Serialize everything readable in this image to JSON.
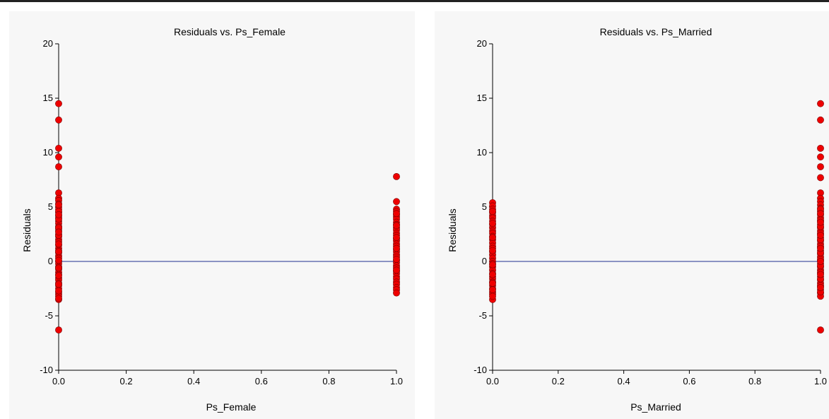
{
  "theme": {
    "point_color": "#ee0000",
    "reference_line_color": "#1f2f8f"
  },
  "chart_data": [
    {
      "type": "scatter",
      "title": "Residuals vs. Ps_Female",
      "xlabel": "Ps_Female",
      "ylabel": "Residuals",
      "xlim": [
        0.0,
        1.0
      ],
      "ylim": [
        -10,
        20
      ],
      "x_ticks": [
        "0.0",
        "0.2",
        "0.4",
        "0.6",
        "0.8",
        "1.0"
      ],
      "y_ticks": [
        "-10",
        "-5",
        "0",
        "5",
        "10",
        "15",
        "20"
      ],
      "reference_line_y": 0,
      "grid": false,
      "series": [
        {
          "x": [
            0,
            0,
            0,
            0,
            0,
            0,
            0,
            0,
            0,
            0,
            0,
            0,
            0,
            0,
            0,
            0,
            0,
            0,
            0,
            0,
            0,
            0,
            0,
            0,
            0,
            0,
            0,
            0,
            0,
            0,
            0,
            0,
            0,
            0,
            0,
            0,
            0,
            0,
            0,
            0,
            0,
            0,
            0,
            0,
            0,
            0,
            0,
            0,
            0,
            0,
            0,
            0,
            0,
            0,
            0,
            0,
            0,
            0,
            0,
            0,
            1,
            1,
            1,
            1,
            1,
            1,
            1,
            1,
            1,
            1,
            1,
            1,
            1,
            1,
            1,
            1,
            1,
            1,
            1,
            1,
            1,
            1,
            1,
            1,
            1,
            1,
            1,
            1,
            1,
            1,
            1,
            1,
            1,
            1,
            1,
            1,
            1,
            1,
            1,
            1
          ],
          "y": [
            14.5,
            13.0,
            10.4,
            9.6,
            8.7,
            6.3,
            5.8,
            5.6,
            5.3,
            5.0,
            4.8,
            4.5,
            4.2,
            4.0,
            3.7,
            3.5,
            3.2,
            3.0,
            2.8,
            2.5,
            2.3,
            2.0,
            1.8,
            1.5,
            1.2,
            1.0,
            0.8,
            0.5,
            0.3,
            0.0,
            -0.2,
            -0.5,
            -0.7,
            -1.0,
            -1.2,
            -1.5,
            -1.7,
            -2.0,
            -2.2,
            -2.5,
            -2.8,
            -3.0,
            -3.2,
            -3.5,
            -6.3,
            4.6,
            3.9,
            3.1,
            2.4,
            1.6,
            0.9,
            0.1,
            -0.6,
            -1.3,
            -2.1,
            -2.7,
            -3.4,
            5.2,
            4.3,
            2.7,
            7.8,
            5.5,
            4.8,
            4.6,
            4.3,
            4.1,
            3.9,
            3.6,
            3.4,
            3.1,
            2.9,
            2.6,
            2.4,
            2.1,
            1.9,
            1.6,
            1.4,
            1.1,
            0.9,
            0.6,
            0.4,
            0.1,
            -0.1,
            -0.4,
            -0.6,
            -0.9,
            -1.1,
            -1.4,
            -1.6,
            -1.9,
            -2.1,
            -2.4,
            -2.6,
            -2.9,
            4.4,
            3.3,
            2.2,
            1.2,
            0.2,
            -0.8
          ]
        }
      ]
    },
    {
      "type": "scatter",
      "title": "Residuals vs. Ps_Married",
      "xlabel": "Ps_Married",
      "ylabel": "Residuals",
      "xlim": [
        0.0,
        1.0
      ],
      "ylim": [
        -10,
        20
      ],
      "x_ticks": [
        "0.0",
        "0.2",
        "0.4",
        "0.6",
        "0.8",
        "1.0"
      ],
      "y_ticks": [
        "-10",
        "-5",
        "0",
        "5",
        "10",
        "15",
        "20"
      ],
      "reference_line_y": 0,
      "grid": false,
      "series": [
        {
          "x": [
            0,
            0,
            0,
            0,
            0,
            0,
            0,
            0,
            0,
            0,
            0,
            0,
            0,
            0,
            0,
            0,
            0,
            0,
            0,
            0,
            0,
            0,
            0,
            0,
            0,
            0,
            0,
            0,
            0,
            0,
            0,
            0,
            0,
            0,
            0,
            0,
            0,
            0,
            0,
            0,
            0,
            1,
            1,
            1,
            1,
            1,
            1,
            1,
            1,
            1,
            1,
            1,
            1,
            1,
            1,
            1,
            1,
            1,
            1,
            1,
            1,
            1,
            1,
            1,
            1,
            1,
            1,
            1,
            1,
            1,
            1,
            1,
            1,
            1,
            1,
            1,
            1,
            1,
            1,
            1,
            1,
            1,
            1,
            1,
            1,
            1,
            1,
            1,
            1,
            1,
            1,
            1,
            1,
            1,
            1,
            1,
            1,
            1,
            1,
            1
          ],
          "y": [
            5.4,
            5.1,
            4.8,
            4.5,
            4.2,
            4.0,
            3.7,
            3.4,
            3.1,
            2.8,
            2.6,
            2.3,
            2.0,
            1.7,
            1.4,
            1.2,
            0.9,
            0.6,
            0.3,
            0.0,
            -0.2,
            -0.5,
            -0.8,
            -1.1,
            -1.4,
            -1.6,
            -1.9,
            -2.2,
            -2.5,
            -2.8,
            -3.0,
            -3.5,
            4.6,
            3.5,
            2.2,
            1.0,
            -0.3,
            -1.2,
            -2.0,
            -2.6,
            -3.2,
            14.5,
            13.0,
            10.4,
            9.6,
            8.7,
            7.7,
            6.3,
            5.8,
            5.5,
            5.2,
            4.9,
            4.6,
            4.3,
            4.0,
            3.7,
            3.4,
            3.1,
            2.8,
            2.5,
            2.2,
            1.9,
            1.6,
            1.3,
            1.0,
            0.7,
            0.4,
            0.1,
            -0.2,
            -0.5,
            -0.8,
            -1.1,
            -1.4,
            -1.7,
            -2.0,
            -2.3,
            -2.6,
            -2.9,
            -3.2,
            -6.3,
            4.8,
            4.4,
            3.8,
            3.2,
            2.6,
            2.0,
            1.4,
            0.8,
            0.2,
            -0.4,
            -1.0,
            -1.6,
            -2.2,
            -2.8,
            3.6,
            2.4,
            1.2,
            0.0,
            -1.2,
            -2.4
          ]
        }
      ]
    }
  ]
}
